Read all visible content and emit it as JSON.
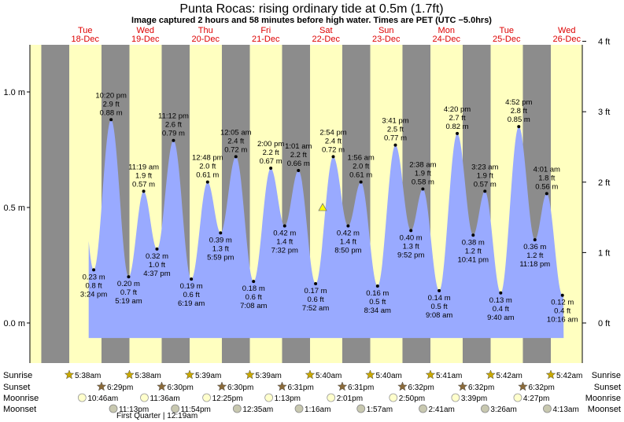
{
  "title": "Punta Rocas: rising  ordinary tide at 0.5m (1.7ft)",
  "subtitle": "Image captured 2 hours and 58 minutes before high water. Times are PET (UTC −5.0hrs)",
  "colors": {
    "night": "#8c8c8c",
    "day": "#ffffc0",
    "water": "#99aaff",
    "day_label": "#dd0000"
  },
  "days": [
    {
      "dow": "Tue",
      "date": "18-Dec"
    },
    {
      "dow": "Wed",
      "date": "19-Dec"
    },
    {
      "dow": "Thu",
      "date": "20-Dec"
    },
    {
      "dow": "Fri",
      "date": "21-Dec"
    },
    {
      "dow": "Sat",
      "date": "22-Dec"
    },
    {
      "dow": "Sun",
      "date": "23-Dec"
    },
    {
      "dow": "Mon",
      "date": "24-Dec"
    },
    {
      "dow": "Tue",
      "date": "25-Dec"
    },
    {
      "dow": "Wed",
      "date": "26-Dec"
    }
  ],
  "chart_data": {
    "type": "area",
    "yaxis_left": {
      "ticks": [
        "0.0 m",
        "0.5 m",
        "1.0 m"
      ],
      "values": [
        0,
        0.5,
        1.0
      ],
      "ylim": [
        -0.13,
        1.22
      ]
    },
    "yaxis_right": {
      "ticks": [
        "0 ft",
        "1 ft",
        "2 ft",
        "3 ft",
        "4 ft"
      ],
      "values": [
        0,
        1,
        2,
        3,
        4
      ]
    },
    "current_level_m": 0.5,
    "tides": [
      {
        "m": "0.23 m",
        "ft": "0.8 ft",
        "time": "3:24 pm",
        "v": 0.23,
        "t": 15.4,
        "type": "low"
      },
      {
        "m": "0.88 m",
        "ft": "2.9 ft",
        "time": "10:20 pm",
        "v": 0.88,
        "t": 22.33,
        "type": "high"
      },
      {
        "m": "0.20 m",
        "ft": "0.7 ft",
        "time": "5:19 am",
        "v": 0.2,
        "t": 29.32,
        "type": "low"
      },
      {
        "m": "0.57 m",
        "ft": "1.9 ft",
        "time": "11:19 am",
        "v": 0.57,
        "t": 35.32,
        "type": "high"
      },
      {
        "m": "0.32 m",
        "ft": "1.0 ft",
        "time": "4:37 pm",
        "v": 0.32,
        "t": 40.62,
        "type": "low"
      },
      {
        "m": "0.79 m",
        "ft": "2.6 ft",
        "time": "11:12 pm",
        "v": 0.79,
        "t": 47.2,
        "type": "high"
      },
      {
        "m": "0.19 m",
        "ft": "0.6 ft",
        "time": "6:19 am",
        "v": 0.19,
        "t": 54.32,
        "type": "low"
      },
      {
        "m": "0.61 m",
        "ft": "2.0 ft",
        "time": "12:48 pm",
        "v": 0.61,
        "t": 60.8,
        "type": "high"
      },
      {
        "m": "0.39 m",
        "ft": "1.3 ft",
        "time": "5:59 pm",
        "v": 0.39,
        "t": 65.98,
        "type": "low"
      },
      {
        "m": "0.72 m",
        "ft": "2.4 ft",
        "time": "12:05 am",
        "v": 0.72,
        "t": 72.08,
        "type": "high"
      },
      {
        "m": "0.18 m",
        "ft": "0.6 ft",
        "time": "7:08 am",
        "v": 0.18,
        "t": 79.13,
        "type": "low"
      },
      {
        "m": "0.67 m",
        "ft": "2.2 ft",
        "time": "2:00 pm",
        "v": 0.67,
        "t": 86.0,
        "type": "high"
      },
      {
        "m": "0.42 m",
        "ft": "1.4 ft",
        "time": "7:32 pm",
        "v": 0.42,
        "t": 91.53,
        "type": "low"
      },
      {
        "m": "0.66 m",
        "ft": "2.2 ft",
        "time": "1:01 am",
        "v": 0.66,
        "t": 97.02,
        "type": "high"
      },
      {
        "m": "0.17 m",
        "ft": "0.6 ft",
        "time": "7:52 am",
        "v": 0.17,
        "t": 103.87,
        "type": "low"
      },
      {
        "m": "0.72 m",
        "ft": "2.4 ft",
        "time": "2:54 pm",
        "v": 0.72,
        "t": 110.9,
        "type": "high"
      },
      {
        "m": "0.42 m",
        "ft": "1.4 ft",
        "time": "8:50 pm",
        "v": 0.42,
        "t": 116.83,
        "type": "low"
      },
      {
        "m": "0.61 m",
        "ft": "2.0 ft",
        "time": "1:56 am",
        "v": 0.61,
        "t": 121.93,
        "type": "high"
      },
      {
        "m": "0.16 m",
        "ft": "0.5 ft",
        "time": "8:34 am",
        "v": 0.16,
        "t": 128.57,
        "type": "low"
      },
      {
        "m": "0.77 m",
        "ft": "2.5 ft",
        "time": "3:41 pm",
        "v": 0.77,
        "t": 135.68,
        "type": "high"
      },
      {
        "m": "0.40 m",
        "ft": "1.3 ft",
        "time": "9:52 pm",
        "v": 0.4,
        "t": 141.87,
        "type": "low"
      },
      {
        "m": "0.58 m",
        "ft": "1.9 ft",
        "time": "2:38 am",
        "v": 0.58,
        "t": 146.63,
        "type": "high"
      },
      {
        "m": "0.14 m",
        "ft": "0.5 ft",
        "time": "9:08 am",
        "v": 0.14,
        "t": 153.13,
        "type": "low"
      },
      {
        "m": "0.82 m",
        "ft": "2.7 ft",
        "time": "4:20 pm",
        "v": 0.82,
        "t": 160.33,
        "type": "high"
      },
      {
        "m": "0.38 m",
        "ft": "1.2 ft",
        "time": "10:41 pm",
        "v": 0.38,
        "t": 166.68,
        "type": "low"
      },
      {
        "m": "0.57 m",
        "ft": "1.9 ft",
        "time": "3:23 am",
        "v": 0.57,
        "t": 171.38,
        "type": "high"
      },
      {
        "m": "0.13 m",
        "ft": "0.4 ft",
        "time": "9:40 am",
        "v": 0.13,
        "t": 177.67,
        "type": "low"
      },
      {
        "m": "0.85 m",
        "ft": "2.8 ft",
        "time": "4:52 pm",
        "v": 0.85,
        "t": 184.87,
        "type": "high"
      },
      {
        "m": "0.36 m",
        "ft": "1.2 ft",
        "time": "11:18 pm",
        "v": 0.36,
        "t": 191.3,
        "type": "low"
      },
      {
        "m": "0.56 m",
        "ft": "1.8 ft",
        "time": "4:01 am",
        "v": 0.56,
        "t": 196.02,
        "type": "high"
      },
      {
        "m": "0.12 m",
        "ft": "0.4 ft",
        "time": "10:16 am",
        "v": 0.12,
        "t": 202.27,
        "type": "low"
      }
    ]
  },
  "bottom": {
    "labels": {
      "sunrise": "Sunrise",
      "sunset": "Sunset",
      "moonrise": "Moonrise",
      "moonset": "Moonset"
    },
    "sunrise": [
      "5:38am",
      "5:38am",
      "5:39am",
      "5:39am",
      "5:40am",
      "5:40am",
      "5:41am",
      "5:42am",
      "5:42am"
    ],
    "sunset": [
      "6:29pm",
      "6:30pm",
      "6:30pm",
      "6:31pm",
      "6:31pm",
      "6:32pm",
      "6:32pm",
      "6:32pm"
    ],
    "moonrise": [
      "10:46am",
      "11:36am",
      "12:25pm",
      "1:13pm",
      "2:01pm",
      "2:50pm",
      "3:39pm",
      "4:27pm"
    ],
    "moonset": [
      "11:13pm",
      "11:54pm",
      "12:35am",
      "1:16am",
      "1:57am",
      "2:41am",
      "3:26am",
      "4:13am"
    ],
    "moon_phase": "First Quarter | 12:19am"
  }
}
